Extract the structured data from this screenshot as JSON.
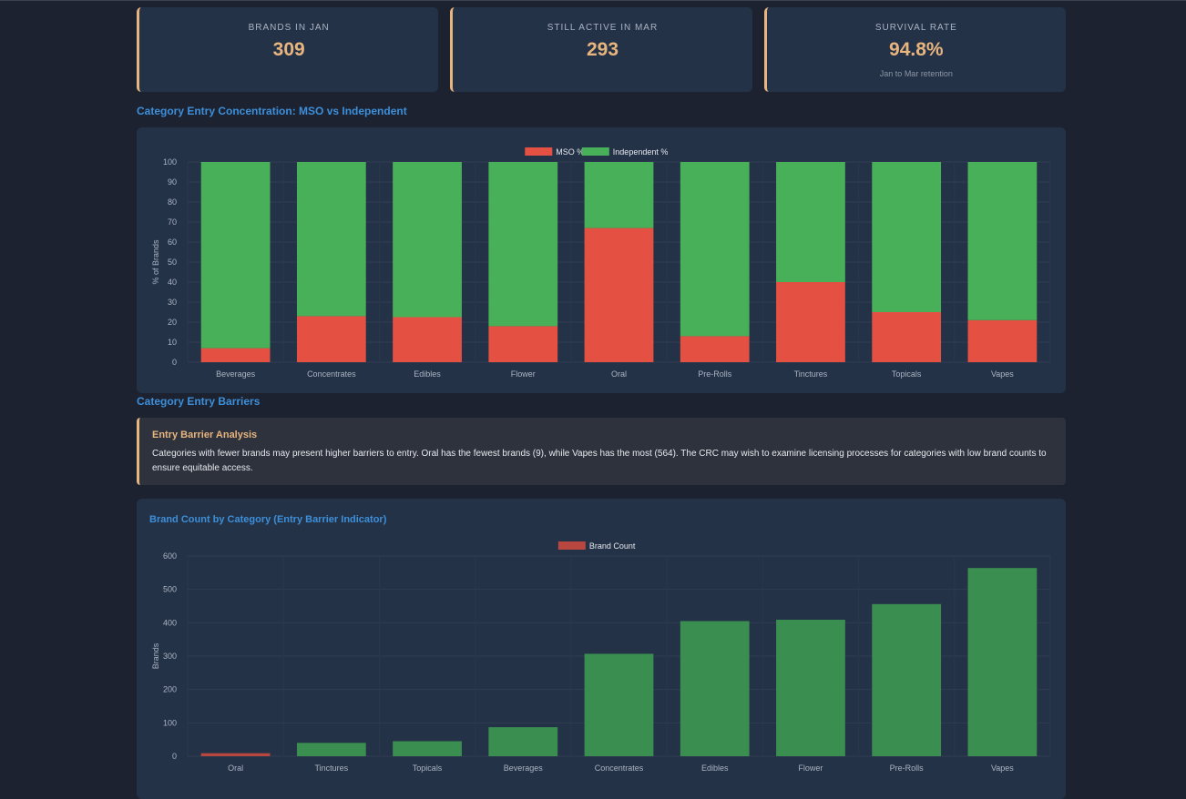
{
  "kpis": [
    {
      "label": "BRANDS IN JAN",
      "value": "309",
      "sub": ""
    },
    {
      "label": "STILL ACTIVE IN MAR",
      "value": "293",
      "sub": ""
    },
    {
      "label": "SURVIVAL RATE",
      "value": "94.8%",
      "sub": "Jan to Mar retention"
    }
  ],
  "sections": {
    "concentration_title": "Category Entry Concentration: MSO vs Independent",
    "barriers_title": "Category Entry Barriers"
  },
  "callout": {
    "title": "Entry Barrier Analysis",
    "text": "Categories with fewer brands may present higher barriers to entry. Oral has the fewest brands (9), while Vapes has the most (564). The CRC may wish to examine licensing processes for categories with low brand counts to ensure equitable access."
  },
  "brand_panel": {
    "title": "Brand Count by Category (Entry Barrier Indicator)"
  },
  "colors": {
    "mso": "#e45143",
    "independent": "#49b05a",
    "brand_bar": "#3a8f50",
    "brand_bar_min": "#b9463f",
    "accent": "#e8b57f",
    "title": "#3d8fd9"
  },
  "chart_data": [
    {
      "type": "bar",
      "stacked": true,
      "categories": [
        "Beverages",
        "Concentrates",
        "Edibles",
        "Flower",
        "Oral",
        "Pre-Rolls",
        "Tinctures",
        "Topicals",
        "Vapes"
      ],
      "series": [
        {
          "name": "MSO %",
          "values": [
            7,
            23,
            22.5,
            18,
            67,
            13,
            40,
            25,
            21
          ],
          "color": "#e45143"
        },
        {
          "name": "Independent %",
          "values": [
            93,
            77,
            77.5,
            82,
            33,
            87,
            60,
            75,
            79
          ],
          "color": "#49b05a"
        }
      ],
      "ylabel": "% of Brands",
      "ylim": [
        0,
        100
      ],
      "yticks": [
        "0",
        "10",
        "20",
        "30",
        "40",
        "50",
        "60",
        "70",
        "80",
        "90",
        "100"
      ],
      "grid": true,
      "legend": "top"
    },
    {
      "type": "bar",
      "categories": [
        "Oral",
        "Tinctures",
        "Topicals",
        "Beverages",
        "Concentrates",
        "Edibles",
        "Flower",
        "Pre-Rolls",
        "Vapes"
      ],
      "series": [
        {
          "name": "Brand Count",
          "values": [
            9,
            40,
            45,
            87,
            307,
            405,
            409,
            456,
            564
          ]
        }
      ],
      "ylabel": "Brands",
      "ylim": [
        0,
        600
      ],
      "yticks": [
        "0",
        "100",
        "200",
        "300",
        "400",
        "500",
        "600"
      ],
      "grid": true,
      "legend": "top"
    }
  ]
}
